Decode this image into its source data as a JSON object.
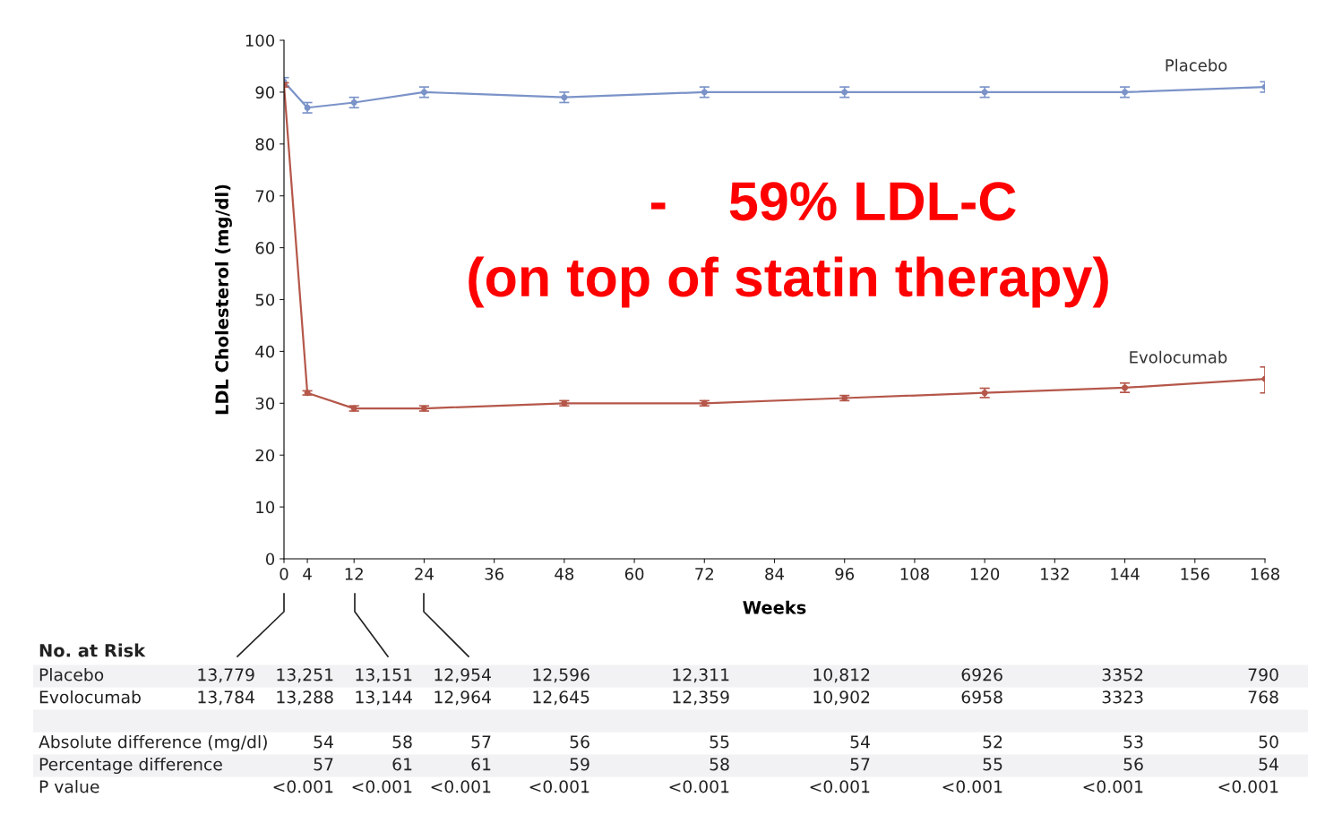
{
  "chart_data": {
    "type": "line",
    "xlabel": "Weeks",
    "ylabel": "LDL Cholesterol (mg/dl)",
    "x": [
      0,
      4,
      12,
      24,
      48,
      72,
      96,
      120,
      144,
      168
    ],
    "xlim": [
      0,
      168
    ],
    "xticks": [
      0,
      4,
      12,
      24,
      36,
      48,
      60,
      72,
      84,
      96,
      108,
      120,
      132,
      144,
      156,
      168
    ],
    "ylim": [
      0,
      100
    ],
    "yticks": [
      0,
      10,
      20,
      30,
      40,
      50,
      60,
      70,
      80,
      90,
      100
    ],
    "grid": false,
    "legend": false,
    "marker": "circle",
    "line_style": "solid",
    "series": [
      {
        "name": "Placebo",
        "color": "#7b93c8",
        "values": [
          92,
          87,
          88,
          90,
          89,
          90,
          90,
          90,
          90,
          91
        ],
        "errors": [
          0.8,
          1,
          1,
          1,
          1,
          1,
          1,
          1,
          1,
          1
        ]
      },
      {
        "name": "Evolocumab",
        "color": "#b5574a",
        "values": [
          91.4,
          32,
          29,
          29,
          30,
          30,
          31,
          32,
          33,
          34.7
        ],
        "errors": [
          0.4,
          0.4,
          0.5,
          0.5,
          0.5,
          0.5,
          0.5,
          0.9,
          0.9,
          [
            32.0,
            37.0
          ]
        ]
      }
    ],
    "annotations": [
      "-    59% LDL-C",
      "(on top of statin therapy)",
      "No. at Risk",
      "Placebo",
      "13,779",
      "13,251",
      "13,151",
      "12,954",
      "12,596",
      "12,311",
      "10,812",
      "6926",
      "3352",
      "790",
      "Evolocumab",
      "13,784",
      "13,288",
      "13,144",
      "12,964",
      "12,645",
      "12,359",
      "10,902",
      "6958",
      "3323",
      "768",
      "Absolute difference (mg/dl)",
      "54",
      "58",
      "57",
      "56",
      "55",
      "54",
      "52",
      "53",
      "50",
      "Percentage difference",
      "57",
      "61",
      "61",
      "59",
      "58",
      "57",
      "55",
      "56",
      "54",
      "P value",
      "<0.001",
      "<0.001",
      "<0.001",
      "<0.001",
      "<0.001",
      "<0.001",
      "<0.001",
      "<0.001",
      "<0.001"
    ]
  }
}
